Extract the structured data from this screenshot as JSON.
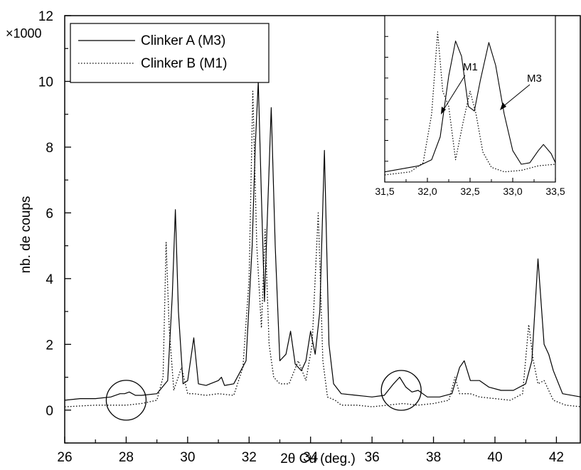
{
  "chart_data": [
    {
      "type": "line",
      "xlabel": "2θ Cu (deg.)",
      "ylabel": "nb. de coups",
      "y_multiplier": "×1000",
      "xlim": [
        26,
        42.8
      ],
      "ylim": [
        -1,
        12
      ],
      "x_ticks": [
        "26",
        "28",
        "30",
        "32",
        "34",
        "36",
        "38",
        "40",
        "42"
      ],
      "y_ticks": [
        "0",
        "2",
        "4",
        "6",
        "8",
        "10",
        "12"
      ],
      "legend": {
        "position": "top-left"
      },
      "series": [
        {
          "name": "Clinker A (M3)",
          "style": "solid",
          "color": "#000000",
          "x": [
            26.0,
            26.5,
            27.0,
            27.5,
            27.8,
            27.95,
            28.1,
            28.3,
            28.5,
            29.0,
            29.35,
            29.5,
            29.6,
            29.7,
            29.85,
            30.0,
            30.2,
            30.35,
            30.6,
            31.0,
            31.1,
            31.2,
            31.5,
            31.9,
            32.1,
            32.2,
            32.3,
            32.4,
            32.5,
            32.6,
            32.72,
            32.85,
            33.0,
            33.2,
            33.35,
            33.5,
            33.7,
            33.85,
            34.0,
            34.15,
            34.3,
            34.45,
            34.6,
            34.75,
            35.0,
            35.5,
            36.0,
            36.4,
            36.7,
            36.9,
            37.1,
            37.3,
            37.5,
            37.8,
            38.2,
            38.6,
            38.85,
            39.0,
            39.2,
            39.5,
            39.8,
            40.2,
            40.6,
            41.0,
            41.2,
            41.4,
            41.6,
            41.75,
            41.9,
            42.2,
            42.8
          ],
          "y": [
            0.3,
            0.35,
            0.35,
            0.4,
            0.5,
            0.5,
            0.55,
            0.45,
            0.45,
            0.5,
            0.9,
            3.5,
            6.1,
            3.0,
            0.8,
            0.9,
            2.2,
            0.8,
            0.75,
            0.9,
            1.0,
            0.75,
            0.8,
            1.5,
            5.0,
            8.0,
            10.0,
            6.5,
            3.3,
            6.0,
            9.2,
            5.0,
            1.5,
            1.7,
            2.4,
            1.4,
            1.2,
            1.5,
            2.4,
            1.7,
            3.0,
            7.9,
            2.0,
            0.8,
            0.5,
            0.45,
            0.4,
            0.45,
            0.8,
            1.0,
            0.7,
            0.55,
            0.6,
            0.4,
            0.4,
            0.5,
            1.3,
            1.5,
            0.9,
            0.9,
            0.7,
            0.6,
            0.6,
            0.8,
            1.5,
            4.6,
            2.0,
            1.7,
            1.2,
            0.5,
            0.4
          ]
        },
        {
          "name": "Clinker B (M1)",
          "style": "dotted",
          "color": "#000000",
          "x": [
            26.0,
            27.0,
            28.0,
            28.5,
            29.0,
            29.2,
            29.3,
            29.4,
            29.55,
            29.8,
            30.0,
            30.2,
            30.6,
            31.0,
            31.5,
            31.8,
            32.0,
            32.12,
            32.25,
            32.4,
            32.52,
            32.65,
            32.8,
            33.0,
            33.3,
            33.6,
            33.85,
            34.05,
            34.25,
            34.4,
            34.55,
            34.8,
            35.0,
            35.5,
            36.0,
            36.5,
            37.0,
            37.5,
            38.0,
            38.5,
            38.7,
            38.85,
            39.2,
            39.5,
            40.0,
            40.5,
            40.9,
            41.1,
            41.25,
            41.4,
            41.6,
            41.9,
            42.3,
            42.8
          ],
          "y": [
            0.1,
            0.15,
            0.15,
            0.2,
            0.3,
            1.0,
            5.1,
            2.5,
            0.6,
            1.3,
            0.5,
            0.5,
            0.45,
            0.5,
            0.45,
            1.3,
            4.0,
            9.7,
            5.0,
            2.5,
            5.5,
            2.0,
            1.0,
            0.8,
            0.8,
            1.5,
            0.9,
            2.0,
            6.0,
            1.5,
            0.4,
            0.3,
            0.15,
            0.15,
            0.1,
            0.15,
            0.2,
            0.15,
            0.2,
            0.3,
            1.0,
            0.5,
            0.5,
            0.4,
            0.35,
            0.3,
            0.5,
            2.6,
            1.5,
            0.8,
            0.9,
            0.3,
            0.15,
            0.1
          ]
        }
      ],
      "annotations": [
        {
          "type": "circle",
          "x": 28.0,
          "y": 0.3
        },
        {
          "type": "circle",
          "x": 36.95,
          "y": 0.6
        }
      ]
    },
    {
      "type": "line",
      "inset": true,
      "xlim": [
        31.5,
        33.5
      ],
      "x_ticks": [
        "31,5",
        "32,0",
        "32,5",
        "33,0",
        "33,5"
      ],
      "y_normalized": true,
      "series": [
        {
          "name": "M3",
          "style": "solid",
          "x": [
            31.5,
            31.7,
            31.9,
            32.05,
            32.15,
            32.25,
            32.33,
            32.4,
            32.48,
            32.55,
            32.62,
            32.72,
            32.8,
            32.9,
            33.0,
            33.1,
            33.2,
            33.3,
            33.36,
            33.45,
            33.5
          ],
          "y": [
            0.02,
            0.04,
            0.06,
            0.1,
            0.25,
            0.65,
            0.88,
            0.78,
            0.45,
            0.42,
            0.62,
            0.87,
            0.72,
            0.4,
            0.16,
            0.07,
            0.08,
            0.16,
            0.2,
            0.14,
            0.08
          ],
          "label": "M3"
        },
        {
          "name": "M1",
          "style": "dotted",
          "x": [
            31.5,
            31.8,
            31.95,
            32.05,
            32.12,
            32.18,
            32.25,
            32.33,
            32.42,
            32.5,
            32.57,
            32.65,
            32.75,
            32.9,
            33.1,
            33.3,
            33.5
          ],
          "y": [
            0.0,
            0.02,
            0.08,
            0.4,
            0.94,
            0.55,
            0.45,
            0.1,
            0.35,
            0.55,
            0.4,
            0.15,
            0.05,
            0.02,
            0.03,
            0.06,
            0.07
          ],
          "label": "M1"
        }
      ]
    }
  ]
}
